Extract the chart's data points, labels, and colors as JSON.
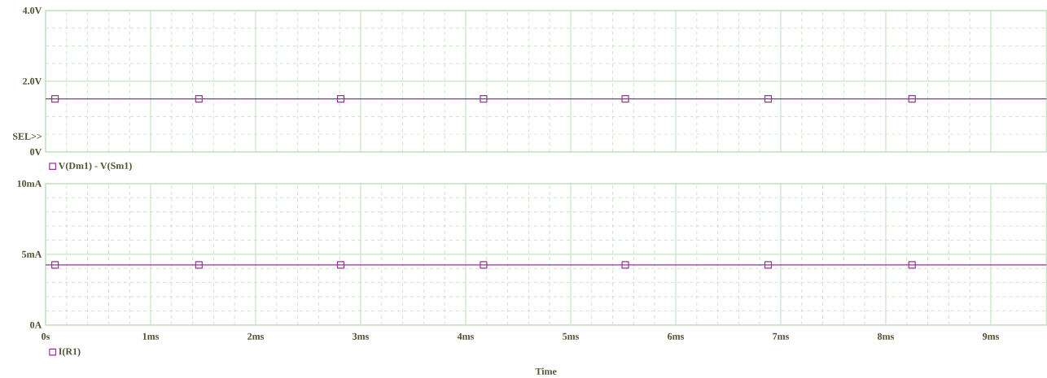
{
  "chart_data": [
    {
      "type": "line",
      "xlim": [
        0,
        9.53
      ],
      "xticks": [
        {
          "value": 0,
          "label": null
        },
        {
          "value": 1,
          "label": null
        },
        {
          "value": 2,
          "label": null
        },
        {
          "value": 3,
          "label": null
        },
        {
          "value": 4,
          "label": null
        },
        {
          "value": 5,
          "label": null
        },
        {
          "value": 6,
          "label": null
        },
        {
          "value": 7,
          "label": null
        },
        {
          "value": 8,
          "label": null
        },
        {
          "value": 9,
          "label": null
        }
      ],
      "ylim": [
        0,
        4
      ],
      "yticks": [
        {
          "value": 0,
          "label": "0V"
        },
        {
          "value": 2,
          "label": "2.0V"
        },
        {
          "value": 4,
          "label": "4.0V"
        }
      ],
      "tick_labels": "y",
      "grid": true,
      "legend": "bottom",
      "marker": "square",
      "line_style": "solid",
      "annotations": [
        "SEL>>"
      ],
      "x": [
        0,
        0.09,
        1.46,
        2.81,
        4.17,
        5.52,
        6.88,
        8.25,
        9.53
      ],
      "series": [
        {
          "name": "V(Dm1) - V(Sm1)",
          "color": "#993399",
          "values": [
            1.5,
            1.5,
            1.5,
            1.5,
            1.5,
            1.5,
            1.5,
            1.5,
            1.5
          ]
        }
      ]
    },
    {
      "type": "line",
      "xlim": [
        0,
        9.53
      ],
      "xticks": [
        {
          "value": 0,
          "label": "0s"
        },
        {
          "value": 1,
          "label": "1ms"
        },
        {
          "value": 2,
          "label": "2ms"
        },
        {
          "value": 3,
          "label": "3ms"
        },
        {
          "value": 4,
          "label": "4ms"
        },
        {
          "value": 5,
          "label": "5ms"
        },
        {
          "value": 6,
          "label": "6ms"
        },
        {
          "value": 7,
          "label": "7ms"
        },
        {
          "value": 8,
          "label": "8ms"
        },
        {
          "value": 9,
          "label": "9ms"
        }
      ],
      "ylim": [
        0,
        10
      ],
      "yticks": [
        {
          "value": 0,
          "label": "0A"
        },
        {
          "value": 5,
          "label": "5mA"
        },
        {
          "value": 10,
          "label": "10mA"
        }
      ],
      "xlabel": "Time",
      "grid": true,
      "legend": "bottom",
      "marker": "square",
      "line_style": "solid",
      "x": [
        0,
        0.09,
        1.46,
        2.81,
        4.17,
        5.52,
        6.88,
        8.25,
        9.53
      ],
      "series": [
        {
          "name": "I(R1)",
          "color": "#993399",
          "values": [
            4.25,
            4.25,
            4.25,
            4.25,
            4.25,
            4.25,
            4.25,
            4.25,
            4.25
          ]
        }
      ]
    }
  ]
}
